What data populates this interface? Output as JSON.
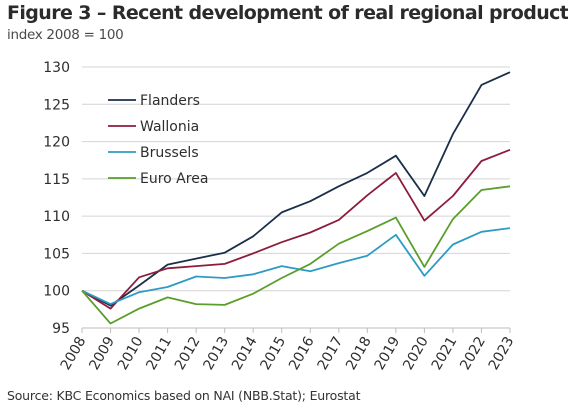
{
  "header": {
    "title": "Figure 3 – Recent development of real regional product",
    "subtitle": "index 2008 = 100"
  },
  "footer": {
    "source": "Source: KBC Economics based on NAI (NBB.Stat); Eurostat"
  },
  "chart_data": {
    "type": "line",
    "title": "Figure 3 – Recent development of real regional product",
    "subtitle": "index 2008 = 100",
    "xlabel": "",
    "ylabel": "",
    "x": [
      "2008",
      "2009",
      "2010",
      "2011",
      "2012",
      "2013",
      "2014",
      "2015",
      "2016",
      "2017",
      "2018",
      "2019",
      "2020",
      "2021",
      "2022",
      "2023"
    ],
    "ylim": [
      95,
      130
    ],
    "yticks": [
      95,
      100,
      105,
      110,
      115,
      120,
      125,
      130
    ],
    "grid": "horizontal",
    "legend_position": "top-left",
    "series": [
      {
        "name": "Flanders",
        "color": "#1b2f4a",
        "values": [
          100,
          98.0,
          100.7,
          103.5,
          104.3,
          105.1,
          107.3,
          110.5,
          112.0,
          114.0,
          115.8,
          118.1,
          112.7,
          121.0,
          127.6,
          129.3
        ]
      },
      {
        "name": "Wallonia",
        "color": "#8c1d3b",
        "values": [
          100,
          97.6,
          101.8,
          103.0,
          103.3,
          103.6,
          105.0,
          106.5,
          107.8,
          109.5,
          112.8,
          115.8,
          109.4,
          112.7,
          117.4,
          118.9
        ]
      },
      {
        "name": "Brussels",
        "color": "#2e9bc4",
        "values": [
          100,
          98.2,
          99.8,
          100.5,
          101.9,
          101.7,
          102.2,
          103.3,
          102.6,
          103.7,
          104.7,
          107.5,
          102.0,
          106.2,
          107.9,
          108.4
        ]
      },
      {
        "name": "Euro Area",
        "color": "#5a9e2c",
        "values": [
          100,
          95.6,
          97.6,
          99.1,
          98.2,
          98.1,
          99.6,
          101.7,
          103.6,
          106.3,
          108.0,
          109.8,
          103.2,
          109.6,
          113.5,
          114.0
        ]
      }
    ]
  }
}
